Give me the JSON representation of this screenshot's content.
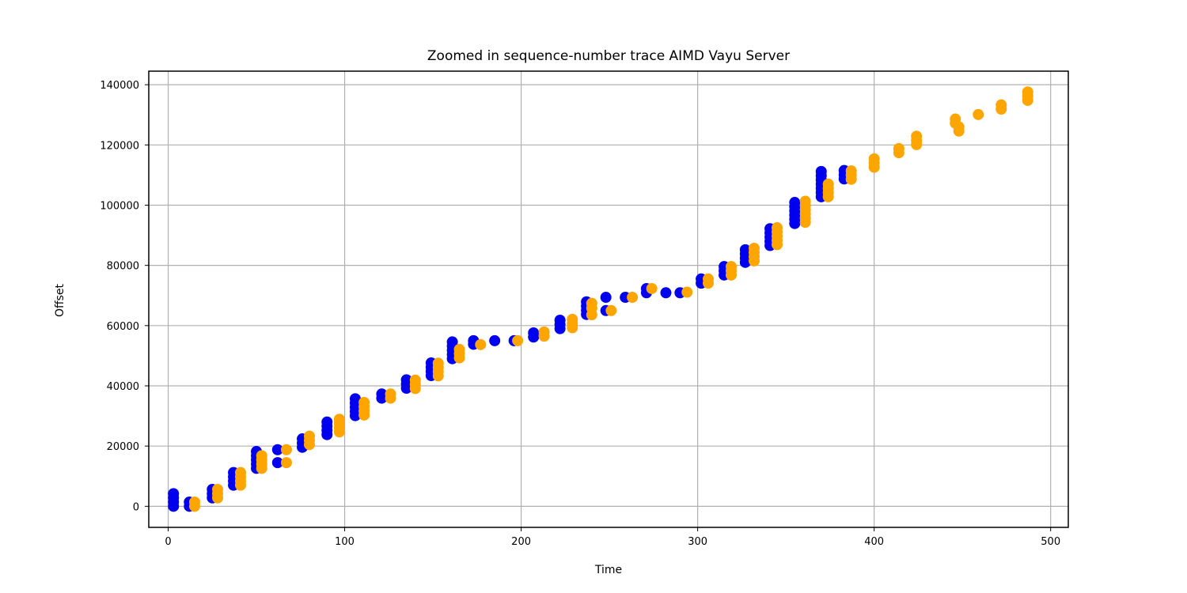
{
  "chart_data": {
    "type": "scatter",
    "title": "Zoomed in sequence-number trace AIMD Vayu Server",
    "xlabel": "Time",
    "ylabel": "Offset",
    "xlim": [
      -11,
      510
    ],
    "ylim": [
      -7000,
      144500
    ],
    "xticks": [
      0,
      100,
      200,
      300,
      400,
      500
    ],
    "yticks": [
      0,
      20000,
      40000,
      60000,
      80000,
      100000,
      120000,
      140000
    ],
    "grid": true,
    "series": [
      {
        "color": "#0000ee",
        "points": [
          [
            3,
            0
          ],
          [
            3,
            1400
          ],
          [
            3,
            2800
          ],
          [
            3,
            4200
          ],
          [
            12,
            0
          ],
          [
            12,
            1400
          ],
          [
            25,
            2800
          ],
          [
            25,
            4200
          ],
          [
            25,
            5600
          ],
          [
            37,
            7000
          ],
          [
            37,
            8400
          ],
          [
            37,
            9800
          ],
          [
            37,
            11200
          ],
          [
            50,
            12600
          ],
          [
            50,
            14000
          ],
          [
            50,
            15400
          ],
          [
            50,
            16800
          ],
          [
            50,
            18200
          ],
          [
            62,
            14500
          ],
          [
            62,
            18800
          ],
          [
            76,
            19600
          ],
          [
            76,
            21000
          ],
          [
            76,
            22400
          ],
          [
            90,
            23800
          ],
          [
            90,
            25200
          ],
          [
            90,
            26600
          ],
          [
            90,
            28000
          ],
          [
            106,
            30100
          ],
          [
            106,
            31500
          ],
          [
            106,
            32900
          ],
          [
            106,
            34300
          ],
          [
            106,
            35700
          ],
          [
            121,
            35900
          ],
          [
            121,
            37300
          ],
          [
            135,
            39200
          ],
          [
            135,
            40600
          ],
          [
            135,
            42000
          ],
          [
            149,
            43400
          ],
          [
            149,
            44800
          ],
          [
            149,
            46200
          ],
          [
            149,
            47600
          ],
          [
            161,
            49000
          ],
          [
            161,
            50400
          ],
          [
            161,
            51800
          ],
          [
            161,
            53200
          ],
          [
            161,
            54600
          ],
          [
            173,
            53800
          ],
          [
            173,
            55000
          ],
          [
            185,
            55000
          ],
          [
            196,
            55000
          ],
          [
            207,
            56200
          ],
          [
            207,
            57600
          ],
          [
            222,
            59000
          ],
          [
            222,
            60400
          ],
          [
            222,
            61800
          ],
          [
            237,
            63700
          ],
          [
            237,
            65100
          ],
          [
            237,
            66500
          ],
          [
            237,
            67900
          ],
          [
            248,
            65000
          ],
          [
            248,
            69400
          ],
          [
            259,
            69400
          ],
          [
            271,
            70900
          ],
          [
            271,
            72300
          ],
          [
            282,
            70900
          ],
          [
            290,
            70900
          ],
          [
            302,
            74100
          ],
          [
            302,
            75500
          ],
          [
            315,
            76800
          ],
          [
            315,
            78200
          ],
          [
            315,
            79600
          ],
          [
            327,
            81000
          ],
          [
            327,
            82400
          ],
          [
            327,
            83800
          ],
          [
            327,
            85200
          ],
          [
            341,
            86600
          ],
          [
            341,
            88000
          ],
          [
            341,
            89400
          ],
          [
            341,
            90800
          ],
          [
            341,
            92200
          ],
          [
            355,
            93900
          ],
          [
            355,
            95300
          ],
          [
            355,
            96700
          ],
          [
            355,
            98100
          ],
          [
            355,
            99500
          ],
          [
            355,
            100900
          ],
          [
            370,
            102800
          ],
          [
            370,
            104200
          ],
          [
            370,
            105600
          ],
          [
            370,
            107000
          ],
          [
            370,
            108400
          ],
          [
            370,
            109800
          ],
          [
            370,
            111200
          ],
          [
            383,
            108700
          ],
          [
            383,
            110100
          ],
          [
            383,
            111500
          ]
        ]
      },
      {
        "color": "#ffa500",
        "points": [
          [
            15,
            0
          ],
          [
            15,
            1400
          ],
          [
            28,
            2800
          ],
          [
            28,
            4200
          ],
          [
            28,
            5600
          ],
          [
            41,
            7000
          ],
          [
            41,
            8400
          ],
          [
            41,
            9800
          ],
          [
            41,
            11200
          ],
          [
            53,
            12600
          ],
          [
            53,
            14000
          ],
          [
            53,
            15400
          ],
          [
            53,
            16800
          ],
          [
            67,
            14500
          ],
          [
            67,
            18800
          ],
          [
            80,
            20500
          ],
          [
            80,
            21900
          ],
          [
            80,
            23300
          ],
          [
            97,
            24700
          ],
          [
            97,
            26100
          ],
          [
            97,
            27500
          ],
          [
            97,
            28900
          ],
          [
            111,
            30300
          ],
          [
            111,
            31700
          ],
          [
            111,
            33100
          ],
          [
            111,
            34500
          ],
          [
            126,
            35900
          ],
          [
            126,
            37300
          ],
          [
            140,
            39100
          ],
          [
            140,
            40500
          ],
          [
            140,
            41900
          ],
          [
            153,
            43300
          ],
          [
            153,
            44700
          ],
          [
            153,
            46100
          ],
          [
            153,
            47500
          ],
          [
            165,
            49300
          ],
          [
            165,
            50700
          ],
          [
            165,
            52100
          ],
          [
            177,
            53700
          ],
          [
            198,
            55000
          ],
          [
            213,
            56500
          ],
          [
            213,
            57900
          ],
          [
            229,
            59300
          ],
          [
            229,
            60700
          ],
          [
            229,
            62100
          ],
          [
            240,
            63600
          ],
          [
            240,
            65800
          ],
          [
            240,
            67400
          ],
          [
            251,
            65000
          ],
          [
            263,
            69400
          ],
          [
            274,
            72300
          ],
          [
            294,
            71100
          ],
          [
            306,
            74100
          ],
          [
            306,
            75500
          ],
          [
            319,
            76800
          ],
          [
            319,
            78200
          ],
          [
            319,
            79600
          ],
          [
            332,
            81500
          ],
          [
            332,
            82900
          ],
          [
            332,
            84300
          ],
          [
            332,
            85700
          ],
          [
            345,
            86900
          ],
          [
            345,
            88300
          ],
          [
            345,
            89700
          ],
          [
            345,
            91100
          ],
          [
            345,
            92500
          ],
          [
            361,
            94300
          ],
          [
            361,
            95700
          ],
          [
            361,
            97100
          ],
          [
            361,
            98500
          ],
          [
            361,
            99900
          ],
          [
            361,
            101300
          ],
          [
            374,
            102800
          ],
          [
            374,
            104200
          ],
          [
            374,
            105600
          ],
          [
            374,
            107000
          ],
          [
            387,
            108600
          ],
          [
            387,
            110000
          ],
          [
            387,
            111400
          ],
          [
            400,
            112600
          ],
          [
            400,
            114000
          ],
          [
            400,
            115400
          ],
          [
            414,
            117400
          ],
          [
            414,
            118800
          ],
          [
            424,
            120100
          ],
          [
            424,
            121500
          ],
          [
            424,
            122900
          ],
          [
            446,
            127200
          ],
          [
            446,
            128600
          ],
          [
            448,
            124600
          ],
          [
            448,
            126000
          ],
          [
            459,
            130100
          ],
          [
            472,
            131900
          ],
          [
            472,
            133300
          ],
          [
            487,
            134800
          ],
          [
            487,
            136200
          ],
          [
            487,
            137600
          ]
        ]
      }
    ]
  }
}
